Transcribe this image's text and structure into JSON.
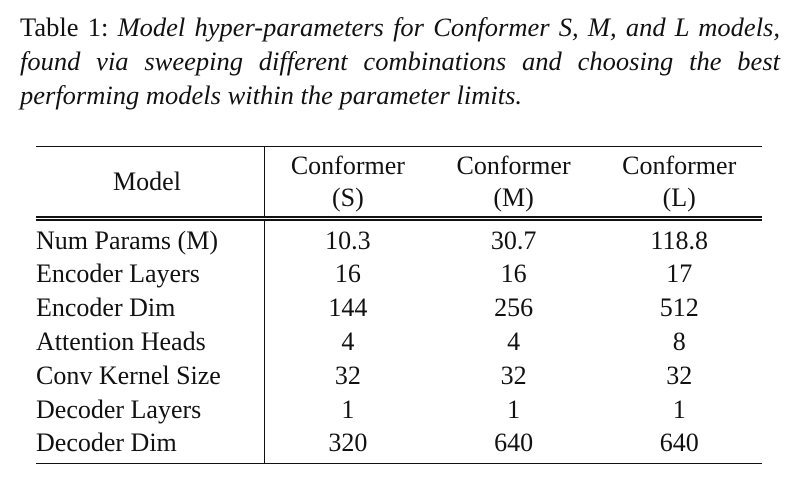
{
  "caption": {
    "label": "Table 1:",
    "text": "Model hyper-parameters for Conformer S, M, and L models, found via sweeping different combinations and choosing the best performing models within the parameter limits."
  },
  "table": {
    "header": [
      [
        "Model"
      ],
      [
        "Conformer",
        "(S)"
      ],
      [
        "Conformer",
        "(M)"
      ],
      [
        "Conformer",
        "(L)"
      ]
    ],
    "rows": [
      [
        "Num Params (M)",
        "10.3",
        "30.7",
        "118.8"
      ],
      [
        "Encoder Layers",
        "16",
        "16",
        "17"
      ],
      [
        "Encoder Dim",
        "144",
        "256",
        "512"
      ],
      [
        "Attention Heads",
        "4",
        "4",
        "8"
      ],
      [
        "Conv Kernel Size",
        "32",
        "32",
        "32"
      ],
      [
        "Decoder Layers",
        "1",
        "1",
        "1"
      ],
      [
        "Decoder Dim",
        "320",
        "640",
        "640"
      ]
    ]
  }
}
